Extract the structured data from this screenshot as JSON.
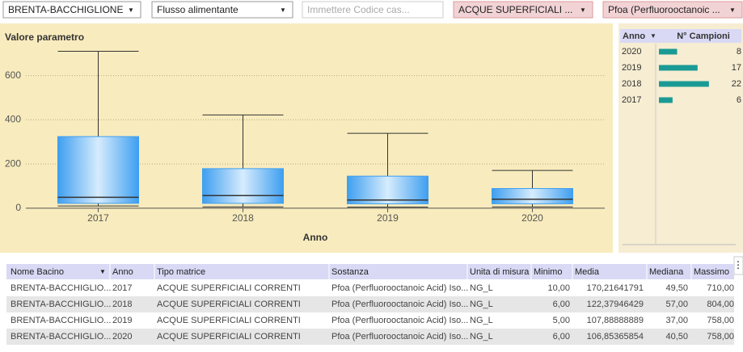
{
  "filters": [
    "BRENTA-BACCHIGLIONE",
    "Flusso alimentante",
    "Immettere Codice cas...",
    "ACQUE SUPERFICIALI ...",
    "Pfoa (Perfluorooctanoic ..."
  ],
  "chart_data": [
    {
      "type": "box",
      "title": "Valore parametro",
      "x_label": "Anno",
      "categories": [
        "2017",
        "2018",
        "2019",
        "2020"
      ],
      "whisker_low": [
        10,
        6,
        5,
        6
      ],
      "q1": [
        22,
        22,
        20,
        20
      ],
      "median": [
        49.5,
        57,
        37,
        40.5
      ],
      "q3": [
        324,
        179,
        145,
        89
      ],
      "whisker_high": [
        710,
        422,
        339,
        171
      ],
      "color": "#3f9ff0",
      "ylim": [
        -15,
        730
      ],
      "yticks": [
        0,
        200,
        400,
        600
      ],
      "grid": true
    },
    {
      "type": "hbar",
      "headers": [
        "Anno",
        "N° Campioni"
      ],
      "categories": [
        "2020",
        "2019",
        "2018",
        "2017"
      ],
      "values": [
        8,
        17,
        22,
        6
      ],
      "color": "#1a9a94",
      "xlim": [
        0,
        32
      ]
    }
  ],
  "table": {
    "headers": [
      "Nome Bacino",
      "Anno",
      "Tipo matrice",
      "Sostanza",
      "Unita di misura",
      "Minimo",
      "Media",
      "Mediana",
      "Massimo"
    ],
    "rows": [
      [
        "BRENTA-BACCHIGLIO...",
        "2017",
        "ACQUE SUPERFICIALI CORRENTI",
        "Pfoa (Perfluorooctanoic Acid) Iso...",
        "NG_L",
        "10,00",
        "170,21641791",
        "49,50",
        "710,00"
      ],
      [
        "BRENTA-BACCHIGLIO...",
        "2018",
        "ACQUE SUPERFICIALI CORRENTI",
        "Pfoa (Perfluorooctanoic Acid) Iso...",
        "NG_L",
        "6,00",
        "122,37946429",
        "57,00",
        "804,00"
      ],
      [
        "BRENTA-BACCHIGLIO...",
        "2019",
        "ACQUE SUPERFICIALI CORRENTI",
        "Pfoa (Perfluorooctanoic Acid) Iso...",
        "NG_L",
        "5,00",
        "107,88888889",
        "37,00",
        "758,00"
      ],
      [
        "BRENTA-BACCHIGLIO...",
        "2020",
        "ACQUE SUPERFICIALI CORRENTI",
        "Pfoa (Perfluorooctanoic Acid) Iso...",
        "NG_L",
        "6,00",
        "106,85365854",
        "40,50",
        "758,00"
      ]
    ]
  }
}
